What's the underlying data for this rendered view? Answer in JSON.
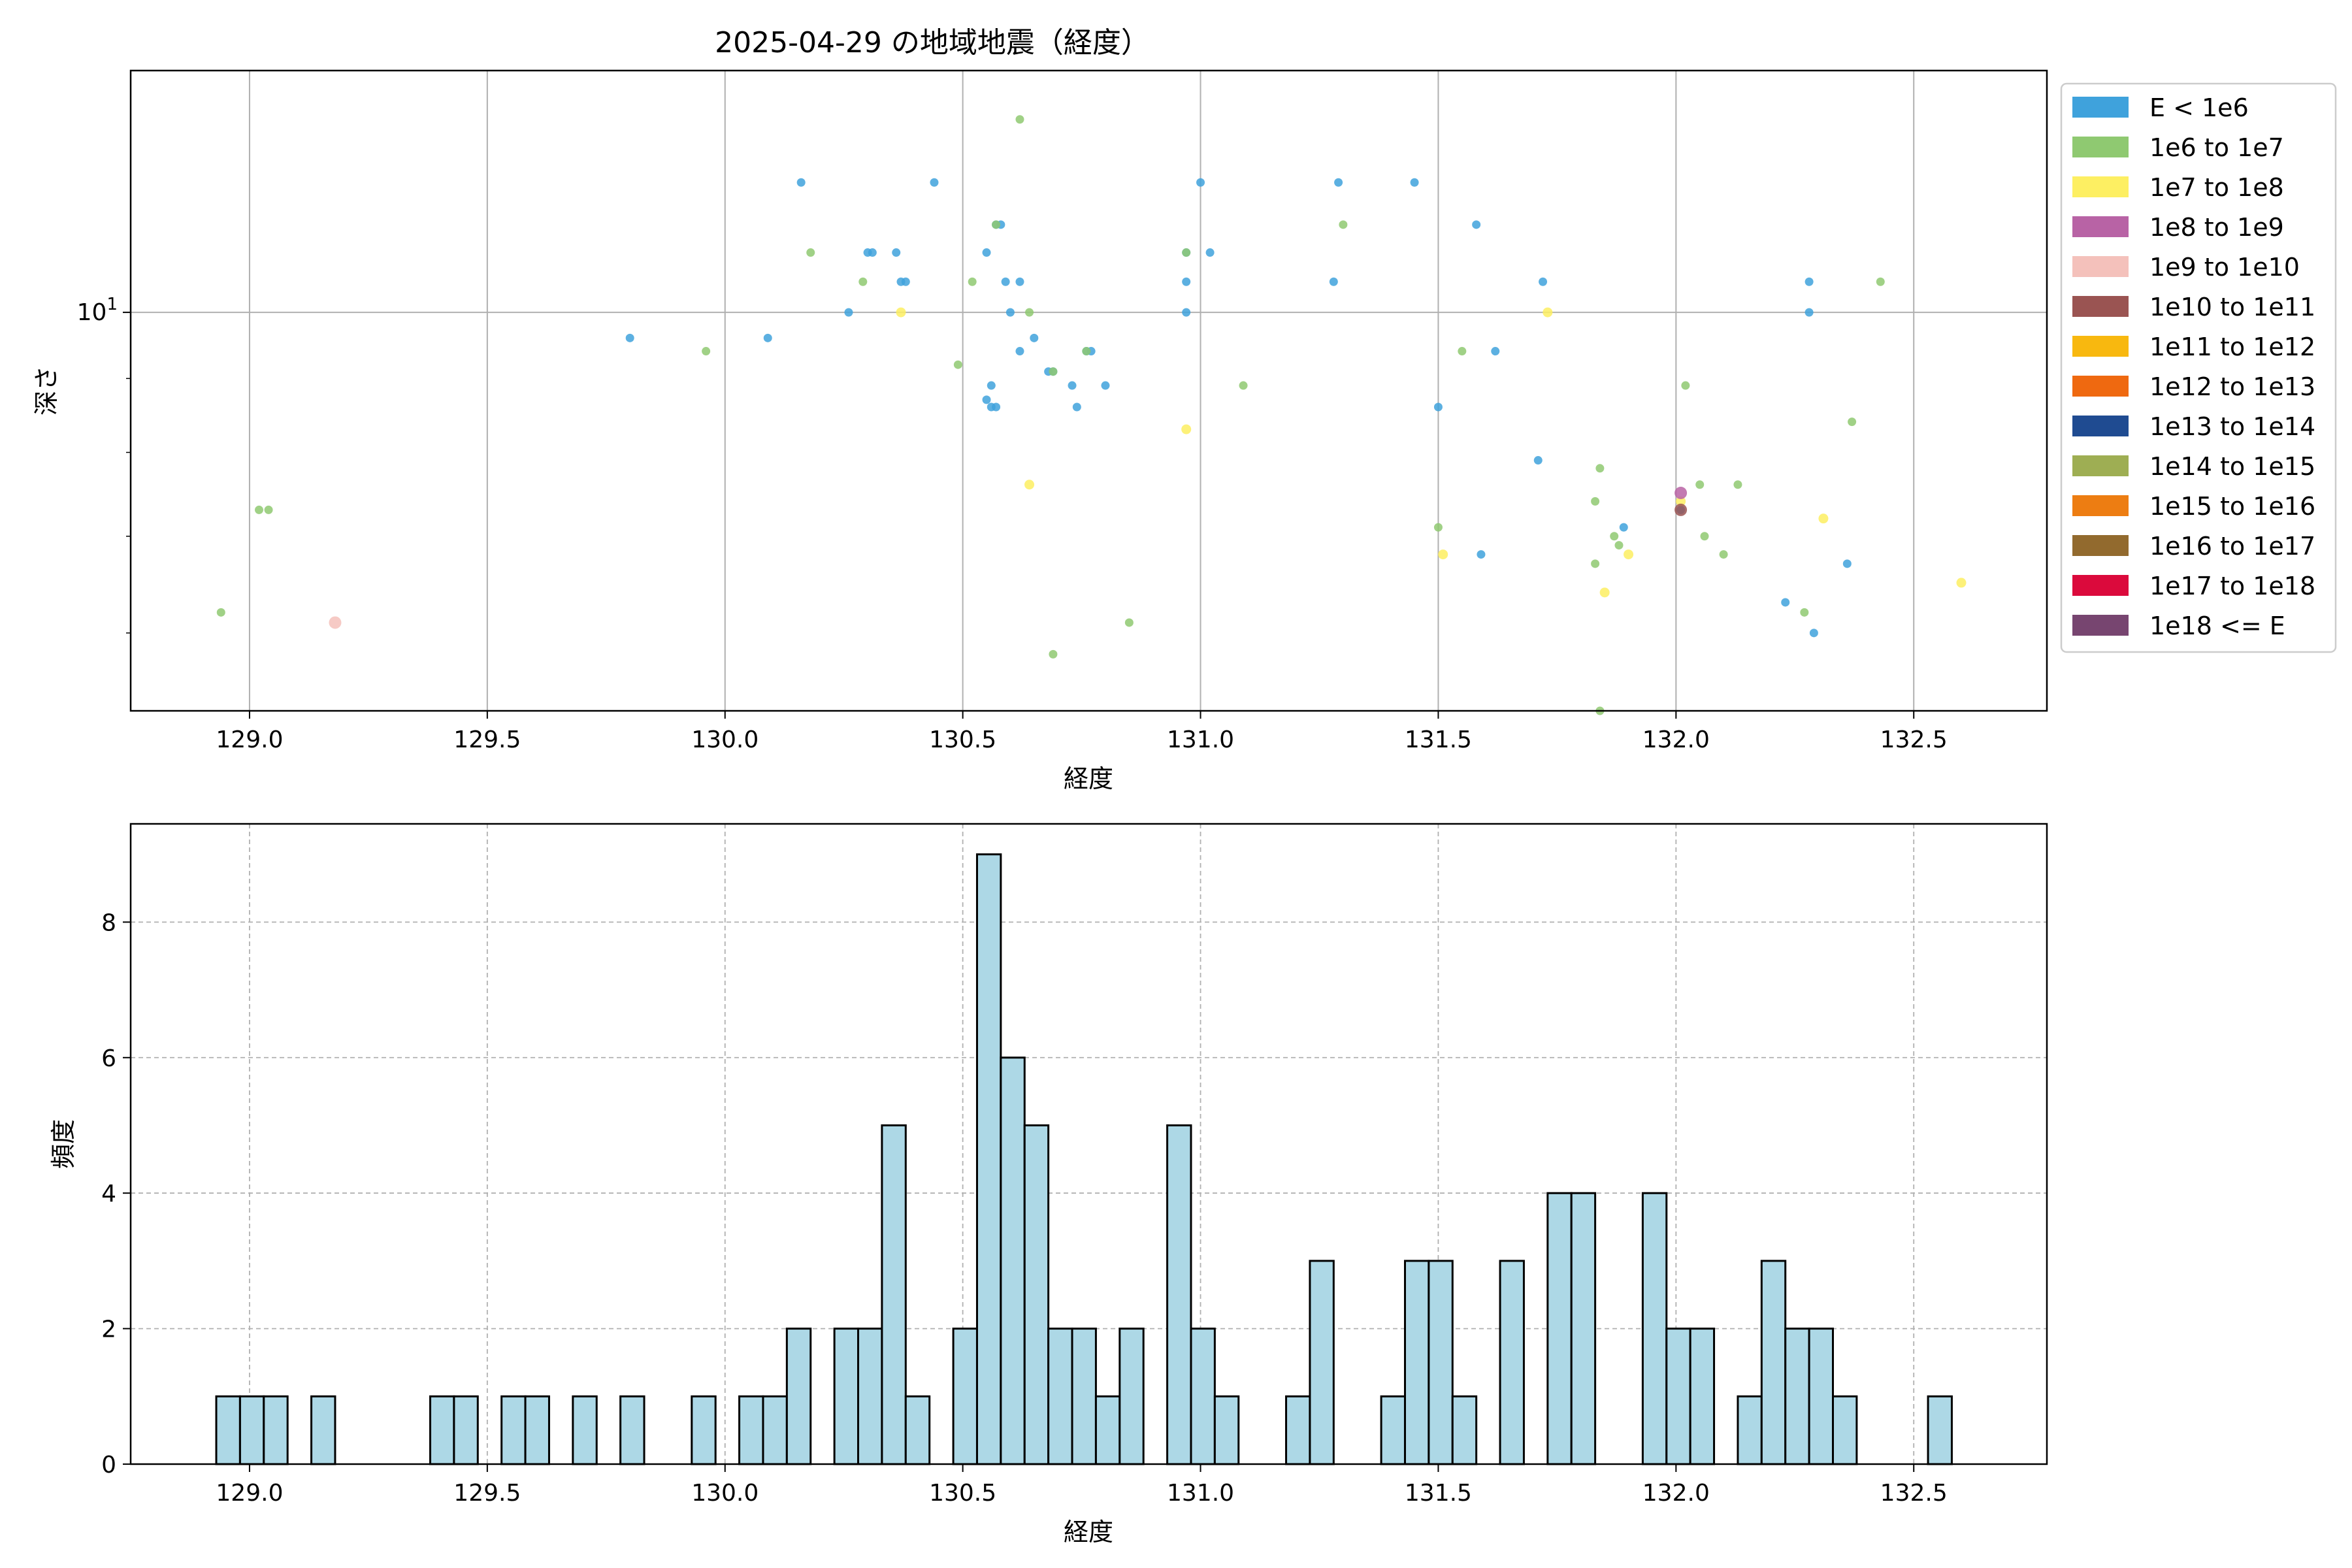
{
  "colors": {
    "E < 1e6": "#3fa2dc",
    "1e6 to 1e7": "#8fc971",
    "1e7 to 1e8": "#fdef62",
    "1e8 to 1e9": "#b863a5",
    "1e9 to 1e10": "#f4c1bb",
    "1e10 to 1e11": "#9a5452",
    "1e11 to 1e12": "#f8b80f",
    "1e12 to 1e13": "#ef6910",
    "1e13 to 1e14": "#1f4b91",
    "1e14 to 1e15": "#9eae53",
    "1e15 to 1e16": "#ed7d12",
    "1e16 to 1e17": "#926a2e",
    "1e17 to 1e18": "#db0a3c",
    "1e18 <= E": "#774570",
    "hist_fill": "#add8e6",
    "hist_edge": "#000000",
    "grid": "#b0b0b0"
  },
  "chart_data": [
    {
      "type": "scatter",
      "title": "2025-04-29 の地域地震（経度）",
      "xlabel": "経度",
      "ylabel": "深さ",
      "xlim": [
        128.75,
        132.78
      ],
      "ylim": [
        5.3,
        14.7
      ],
      "yscale": "log",
      "xticks": [
        "129.0",
        "129.5",
        "130.0",
        "130.5",
        "131.0",
        "131.5",
        "132.0",
        "132.5"
      ],
      "yticks": [
        "10^1"
      ],
      "grid": true,
      "legend": {
        "placement": "outside-right",
        "entries": [
          "E < 1e6",
          "1e6 to 1e7",
          "1e7 to 1e8",
          "1e8 to 1e9",
          "1e9 to 1e10",
          "1e10 to 1e11",
          "1e11 to 1e12",
          "1e12 to 1e13",
          "1e13 to 1e14",
          "1e14 to 1e15",
          "1e15 to 1e16",
          "1e16 to 1e17",
          "1e17 to 1e18",
          "1e18 <= E"
        ]
      },
      "series": [
        {
          "name": "E < 1e6",
          "points": [
            [
              130.16,
              12.3
            ],
            [
              130.44,
              12.3
            ],
            [
              130.3,
              11.0
            ],
            [
              130.31,
              11.0
            ],
            [
              130.36,
              11.0
            ],
            [
              130.37,
              10.5
            ],
            [
              130.38,
              10.5
            ],
            [
              130.26,
              10.0
            ],
            [
              129.8,
              9.6
            ],
            [
              130.09,
              9.6
            ],
            [
              130.57,
              11.5
            ],
            [
              130.58,
              11.5
            ],
            [
              130.55,
              11.0
            ],
            [
              130.59,
              10.5
            ],
            [
              130.62,
              10.5
            ],
            [
              130.6,
              10.0
            ],
            [
              130.62,
              9.4
            ],
            [
              130.65,
              9.6
            ],
            [
              130.68,
              9.1
            ],
            [
              130.69,
              9.1
            ],
            [
              130.76,
              9.4
            ],
            [
              130.77,
              9.4
            ],
            [
              130.56,
              8.9
            ],
            [
              130.56,
              8.6
            ],
            [
              130.55,
              8.7
            ],
            [
              130.57,
              8.6
            ],
            [
              130.73,
              8.9
            ],
            [
              130.74,
              8.6
            ],
            [
              130.8,
              8.9
            ],
            [
              131.0,
              12.3
            ],
            [
              130.97,
              11.0
            ],
            [
              131.02,
              11.0
            ],
            [
              130.97,
              10.5
            ],
            [
              130.97,
              10.0
            ],
            [
              131.29,
              12.3
            ],
            [
              131.28,
              10.5
            ],
            [
              131.45,
              12.3
            ],
            [
              131.58,
              11.5
            ],
            [
              131.72,
              10.5
            ],
            [
              131.62,
              9.4
            ],
            [
              131.5,
              8.6
            ],
            [
              131.71,
              7.9
            ],
            [
              131.89,
              7.1
            ],
            [
              131.59,
              6.8
            ],
            [
              132.28,
              10.5
            ],
            [
              132.28,
              10.0
            ],
            [
              132.23,
              6.3
            ],
            [
              132.29,
              6.0
            ],
            [
              132.36,
              6.7
            ],
            [
              132.01,
              7.3
            ]
          ]
        },
        {
          "name": "1e6 to 1e7",
          "points": [
            [
              130.62,
              13.6
            ],
            [
              130.57,
              11.5
            ],
            [
              130.18,
              11.0
            ],
            [
              130.29,
              10.5
            ],
            [
              130.52,
              10.5
            ],
            [
              130.64,
              10.0
            ],
            [
              129.96,
              9.4
            ],
            [
              130.49,
              9.2
            ],
            [
              130.76,
              9.4
            ],
            [
              130.69,
              9.1
            ],
            [
              129.02,
              7.3
            ],
            [
              129.04,
              7.3
            ],
            [
              128.94,
              6.2
            ],
            [
              130.97,
              11.0
            ],
            [
              131.3,
              11.5
            ],
            [
              131.09,
              8.9
            ],
            [
              130.85,
              6.1
            ],
            [
              130.69,
              5.8
            ],
            [
              131.55,
              9.4
            ],
            [
              131.5,
              7.1
            ],
            [
              132.02,
              8.9
            ],
            [
              131.84,
              7.8
            ],
            [
              131.83,
              7.4
            ],
            [
              132.05,
              7.6
            ],
            [
              132.13,
              7.6
            ],
            [
              132.37,
              8.4
            ],
            [
              132.43,
              10.5
            ],
            [
              131.88,
              6.9
            ],
            [
              131.87,
              7.0
            ],
            [
              132.06,
              7.0
            ],
            [
              132.1,
              6.8
            ],
            [
              131.83,
              6.7
            ],
            [
              132.27,
              6.2
            ],
            [
              131.84,
              5.3
            ]
          ]
        },
        {
          "name": "1e7 to 1e8",
          "points": [
            [
              130.37,
              10.0
            ],
            [
              130.97,
              8.3
            ],
            [
              130.64,
              7.6
            ],
            [
              131.73,
              10.0
            ],
            [
              131.51,
              6.8
            ],
            [
              131.85,
              6.4
            ],
            [
              131.9,
              6.8
            ],
            [
              132.01,
              7.4
            ],
            [
              132.31,
              7.2
            ],
            [
              132.6,
              6.5
            ]
          ]
        },
        {
          "name": "1e8 to 1e9",
          "points": [
            [
              132.01,
              7.5
            ]
          ]
        },
        {
          "name": "1e9 to 1e10",
          "points": [
            [
              129.18,
              6.1
            ]
          ]
        },
        {
          "name": "1e10 to 1e11",
          "points": [
            [
              132.01,
              7.3
            ]
          ]
        },
        {
          "name": "1e11 to 1e12",
          "points": []
        },
        {
          "name": "1e12 to 1e13",
          "points": []
        },
        {
          "name": "1e13 to 1e14",
          "points": []
        },
        {
          "name": "1e14 to 1e15",
          "points": []
        },
        {
          "name": "1e15 to 1e16",
          "points": []
        },
        {
          "name": "1e16 to 1e17",
          "points": []
        },
        {
          "name": "1e17 to 1e18",
          "points": []
        },
        {
          "name": "1e18 <= E",
          "points": []
        }
      ]
    },
    {
      "type": "bar",
      "subtype": "histogram",
      "xlabel": "経度",
      "ylabel": "頻度",
      "xlim": [
        128.75,
        132.78
      ],
      "ylim": [
        0,
        9.45
      ],
      "xticks": [
        "129.0",
        "129.5",
        "130.0",
        "130.5",
        "131.0",
        "131.5",
        "132.0",
        "132.5"
      ],
      "yticks": [
        "0",
        "2",
        "4",
        "6",
        "8"
      ],
      "grid": "dashed",
      "bin_edges_start": 128.93,
      "bin_width": 0.05,
      "counts": [
        1,
        1,
        1,
        0,
        1,
        0,
        0,
        0,
        0,
        1,
        1,
        0,
        1,
        1,
        0,
        1,
        0,
        1,
        0,
        0,
        1,
        0,
        1,
        1,
        2,
        0,
        2,
        2,
        5,
        1,
        0,
        2,
        9,
        6,
        5,
        2,
        2,
        1,
        2,
        0,
        5,
        2,
        1,
        0,
        0,
        1,
        3,
        0,
        0,
        1,
        3,
        3,
        1,
        0,
        3,
        0,
        4,
        4,
        0,
        0,
        4,
        2,
        2,
        0,
        1,
        3,
        2,
        2,
        1,
        0,
        0,
        0,
        1
      ]
    }
  ]
}
